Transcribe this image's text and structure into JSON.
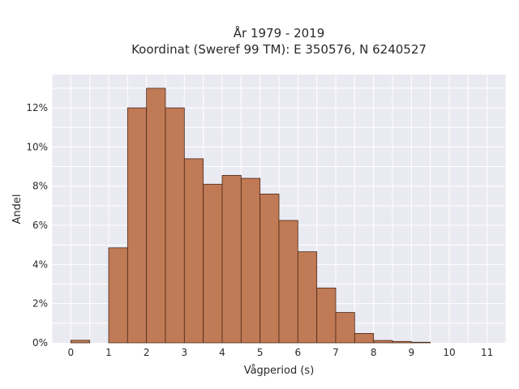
{
  "chart_data": {
    "type": "bar",
    "title_line1": "År 1979 - 2019",
    "title_line2": "Koordinat (Sweref 99 TM): E 350576, N 6240527",
    "xlabel": "Vågperiod (s)",
    "ylabel": "Andel",
    "bin_width": 0.5,
    "bins": [
      {
        "x": 0.0,
        "value": 0.13
      },
      {
        "x": 0.5,
        "value": 0.0
      },
      {
        "x": 1.0,
        "value": 4.85
      },
      {
        "x": 1.5,
        "value": 12.0
      },
      {
        "x": 2.0,
        "value": 13.0
      },
      {
        "x": 2.5,
        "value": 12.0
      },
      {
        "x": 3.0,
        "value": 9.4
      },
      {
        "x": 3.5,
        "value": 8.1
      },
      {
        "x": 4.0,
        "value": 8.55
      },
      {
        "x": 4.5,
        "value": 8.4
      },
      {
        "x": 5.0,
        "value": 7.6
      },
      {
        "x": 5.5,
        "value": 6.25
      },
      {
        "x": 6.0,
        "value": 4.65
      },
      {
        "x": 6.5,
        "value": 2.8
      },
      {
        "x": 7.0,
        "value": 1.55
      },
      {
        "x": 7.5,
        "value": 0.48
      },
      {
        "x": 8.0,
        "value": 0.12
      },
      {
        "x": 8.5,
        "value": 0.07
      },
      {
        "x": 9.0,
        "value": 0.03
      }
    ],
    "xlim": [
      -0.5,
      11.5
    ],
    "ylim": [
      0,
      13.7
    ],
    "x_ticks": [
      {
        "value": 0,
        "label": "0"
      },
      {
        "value": 1,
        "label": "1"
      },
      {
        "value": 2,
        "label": "2"
      },
      {
        "value": 3,
        "label": "3"
      },
      {
        "value": 4,
        "label": "4"
      },
      {
        "value": 5,
        "label": "5"
      },
      {
        "value": 6,
        "label": "6"
      },
      {
        "value": 7,
        "label": "7"
      },
      {
        "value": 8,
        "label": "8"
      },
      {
        "value": 9,
        "label": "9"
      },
      {
        "value": 10,
        "label": "10"
      },
      {
        "value": 11,
        "label": "11"
      }
    ],
    "y_ticks": [
      {
        "value": 0,
        "label": "0%"
      },
      {
        "value": 2,
        "label": "2%"
      },
      {
        "value": 4,
        "label": "4%"
      },
      {
        "value": 6,
        "label": "6%"
      },
      {
        "value": 8,
        "label": "8%"
      },
      {
        "value": 10,
        "label": "10%"
      },
      {
        "value": 12,
        "label": "12%"
      }
    ],
    "grid": true,
    "colors": {
      "bar_fill": "#c07a55",
      "bar_edge": "#4a2a1a",
      "plot_background": "#eaeaf2",
      "grid": "#ffffff"
    }
  }
}
